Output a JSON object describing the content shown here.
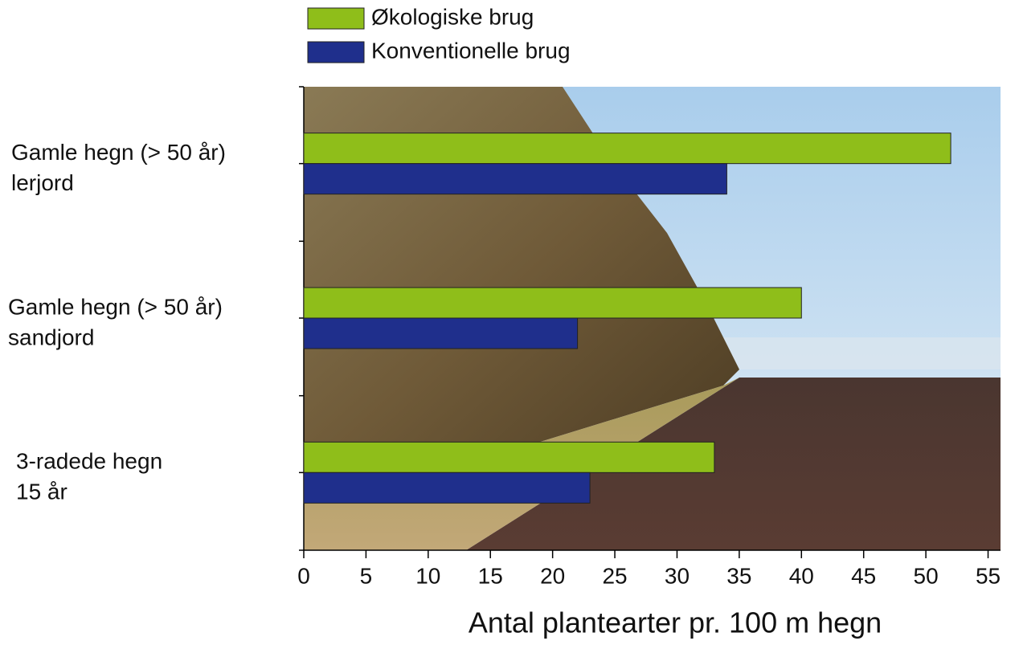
{
  "chart_data": {
    "type": "bar",
    "orientation": "horizontal",
    "categories": [
      [
        "Gamle hegn (> 50 år)",
        "lerjord"
      ],
      [
        "Gamle hegn (> 50 år)",
        "sandjord"
      ],
      [
        "3-radede hegn",
        "15 år"
      ]
    ],
    "series": [
      {
        "name": "Økologiske brug",
        "color": "#8fbe1a",
        "values": [
          52,
          40,
          33
        ]
      },
      {
        "name": "Konventionelle brug",
        "color": "#1f2f8c",
        "values": [
          34,
          22,
          23
        ]
      }
    ],
    "xlabel": "Antal plantearter pr. 100 m hegn",
    "xlim": [
      0,
      56
    ],
    "xticks": [
      0,
      5,
      10,
      15,
      20,
      25,
      30,
      35,
      40,
      45,
      50,
      55
    ]
  }
}
